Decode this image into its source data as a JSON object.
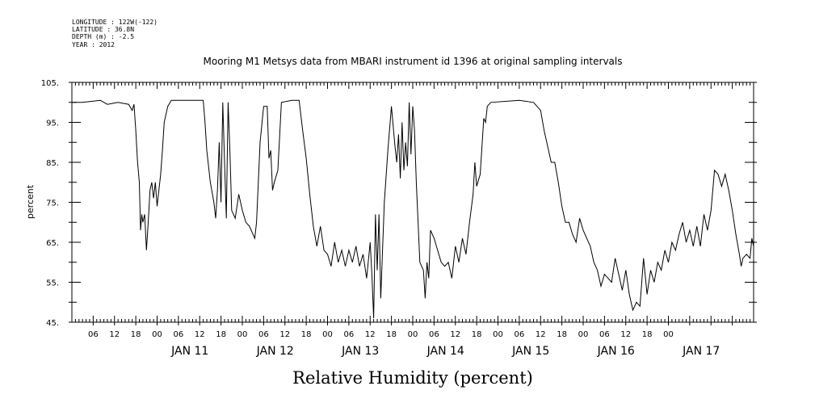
{
  "meta": {
    "lines": [
      "LONGITUDE : 122W(-122)",
      "LATITUDE : 36.8N",
      "DEPTH (m) : -2.5",
      "YEAR : 2012"
    ]
  },
  "chart_data": {
    "type": "line",
    "title": "Mooring M1 Metsys data from MBARI instrument id 1396 at original sampling intervals",
    "xlabel": "Relative Humidity (percent)",
    "ylabel": "percent",
    "ylim": [
      45,
      105
    ],
    "yticks": [
      45,
      55,
      65,
      75,
      85,
      95,
      105
    ],
    "ytick_labels": [
      "45.",
      "55.",
      "65.",
      "75.",
      "85.",
      "95.",
      "105."
    ],
    "xlim": [
      "2012-01-10T00:00",
      "2012-01-18T00:00"
    ],
    "xtick_labels": [
      "06",
      "12",
      "18",
      "00",
      "06",
      "12",
      "18",
      "00",
      "06",
      "12",
      "18",
      "00",
      "06",
      "12",
      "18",
      "00",
      "06",
      "12",
      "18",
      "00",
      "06",
      "12",
      "18",
      "00",
      "06",
      "12",
      "18",
      "00"
    ],
    "day_labels": [
      "JAN 11",
      "JAN 12",
      "JAN 13",
      "JAN 14",
      "JAN 15",
      "JAN 16",
      "JAN 17"
    ],
    "series": [
      {
        "color": "#000000",
        "points": [
          [
            "2012-01-10T00:00",
            100.0
          ],
          [
            "2012-01-10T03:00",
            100.0
          ],
          [
            "2012-01-10T08:00",
            100.5
          ],
          [
            "2012-01-10T10:00",
            99.5
          ],
          [
            "2012-01-10T13:00",
            100.0
          ],
          [
            "2012-01-10T16:00",
            99.5
          ],
          [
            "2012-01-10T17:00",
            98.0
          ],
          [
            "2012-01-10T17:30",
            99.5
          ],
          [
            "2012-01-10T18:00",
            93.0
          ],
          [
            "2012-01-10T18:30",
            85.0
          ],
          [
            "2012-01-10T19:00",
            80.0
          ],
          [
            "2012-01-10T19:20",
            68.0
          ],
          [
            "2012-01-10T19:40",
            72.0
          ],
          [
            "2012-01-10T20:00",
            70.0
          ],
          [
            "2012-01-10T20:30",
            72.0
          ],
          [
            "2012-01-10T21:00",
            63.0
          ],
          [
            "2012-01-10T21:30",
            70.0
          ],
          [
            "2012-01-10T22:00",
            78.0
          ],
          [
            "2012-01-10T22:30",
            80.0
          ],
          [
            "2012-01-10T23:00",
            76.0
          ],
          [
            "2012-01-10T23:30",
            80.0
          ],
          [
            "2012-01-11T00:00",
            74.0
          ],
          [
            "2012-01-11T00:30",
            78.0
          ],
          [
            "2012-01-11T01:00",
            82.0
          ],
          [
            "2012-01-11T01:30",
            88.0
          ],
          [
            "2012-01-11T02:00",
            95.0
          ],
          [
            "2012-01-11T03:00",
            99.0
          ],
          [
            "2012-01-11T04:00",
            100.5
          ],
          [
            "2012-01-11T09:00",
            100.5
          ],
          [
            "2012-01-11T13:00",
            100.5
          ],
          [
            "2012-01-11T13:30",
            95.0
          ],
          [
            "2012-01-11T14:00",
            88.0
          ],
          [
            "2012-01-11T15:00",
            80.0
          ],
          [
            "2012-01-11T16:00",
            75.0
          ],
          [
            "2012-01-11T16:30",
            71.0
          ],
          [
            "2012-01-11T17:00",
            78.0
          ],
          [
            "2012-01-11T17:30",
            90.0
          ],
          [
            "2012-01-11T18:00",
            75.0
          ],
          [
            "2012-01-11T18:30",
            100.0
          ],
          [
            "2012-01-11T19:00",
            85.0
          ],
          [
            "2012-01-11T19:30",
            71.0
          ],
          [
            "2012-01-11T20:00",
            100.0
          ],
          [
            "2012-01-11T20:30",
            88.0
          ],
          [
            "2012-01-11T21:00",
            73.0
          ],
          [
            "2012-01-11T22:00",
            71.0
          ],
          [
            "2012-01-11T23:00",
            77.0
          ],
          [
            "2012-01-12T00:00",
            73.0
          ],
          [
            "2012-01-12T01:00",
            70.0
          ],
          [
            "2012-01-12T02:00",
            69.0
          ],
          [
            "2012-01-12T03:00",
            67.0
          ],
          [
            "2012-01-12T03:30",
            66.0
          ],
          [
            "2012-01-12T04:00",
            70.0
          ],
          [
            "2012-01-12T05:00",
            90.0
          ],
          [
            "2012-01-12T06:00",
            99.0
          ],
          [
            "2012-01-12T07:00",
            99.0
          ],
          [
            "2012-01-12T07:30",
            86.0
          ],
          [
            "2012-01-12T08:00",
            88.0
          ],
          [
            "2012-01-12T08:30",
            78.0
          ],
          [
            "2012-01-12T09:00",
            80.0
          ],
          [
            "2012-01-12T10:00",
            83.0
          ],
          [
            "2012-01-12T11:00",
            100.0
          ],
          [
            "2012-01-12T14:00",
            100.5
          ],
          [
            "2012-01-12T16:00",
            100.5
          ],
          [
            "2012-01-12T17:00",
            93.0
          ],
          [
            "2012-01-12T18:00",
            86.0
          ],
          [
            "2012-01-12T19:00",
            77.0
          ],
          [
            "2012-01-12T20:00",
            69.0
          ],
          [
            "2012-01-12T21:00",
            64.0
          ],
          [
            "2012-01-12T22:00",
            69.0
          ],
          [
            "2012-01-12T23:00",
            63.0
          ],
          [
            "2012-01-13T00:00",
            62.0
          ],
          [
            "2012-01-13T01:00",
            59.0
          ],
          [
            "2012-01-13T02:00",
            65.0
          ],
          [
            "2012-01-13T03:00",
            60.0
          ],
          [
            "2012-01-13T04:00",
            63.0
          ],
          [
            "2012-01-13T05:00",
            59.0
          ],
          [
            "2012-01-13T06:00",
            63.0
          ],
          [
            "2012-01-13T07:00",
            60.0
          ],
          [
            "2012-01-13T08:00",
            64.0
          ],
          [
            "2012-01-13T09:00",
            59.0
          ],
          [
            "2012-01-13T10:00",
            62.0
          ],
          [
            "2012-01-13T11:00",
            56.0
          ],
          [
            "2012-01-13T12:00",
            65.0
          ],
          [
            "2012-01-13T12:30",
            57.0
          ],
          [
            "2012-01-13T13:00",
            46.0
          ],
          [
            "2012-01-13T13:30",
            72.0
          ],
          [
            "2012-01-13T14:00",
            58.0
          ],
          [
            "2012-01-13T14:30",
            72.0
          ],
          [
            "2012-01-13T15:00",
            51.0
          ],
          [
            "2012-01-13T16:00",
            75.0
          ],
          [
            "2012-01-13T17:00",
            88.0
          ],
          [
            "2012-01-13T18:00",
            99.0
          ],
          [
            "2012-01-13T19:00",
            89.0
          ],
          [
            "2012-01-13T19:30",
            85.0
          ],
          [
            "2012-01-13T20:00",
            92.0
          ],
          [
            "2012-01-13T20:30",
            81.0
          ],
          [
            "2012-01-13T21:00",
            95.0
          ],
          [
            "2012-01-13T21:30",
            83.0
          ],
          [
            "2012-01-13T22:00",
            90.0
          ],
          [
            "2012-01-13T22:30",
            84.0
          ],
          [
            "2012-01-13T23:00",
            100.0
          ],
          [
            "2012-01-13T23:30",
            87.0
          ],
          [
            "2012-01-14T00:00",
            99.0
          ],
          [
            "2012-01-14T00:30",
            93.0
          ],
          [
            "2012-01-14T01:00",
            80.0
          ],
          [
            "2012-01-14T02:00",
            60.0
          ],
          [
            "2012-01-14T03:00",
            58.0
          ],
          [
            "2012-01-14T03:30",
            51.0
          ],
          [
            "2012-01-14T04:00",
            60.0
          ],
          [
            "2012-01-14T04:30",
            56.0
          ],
          [
            "2012-01-14T05:00",
            68.0
          ],
          [
            "2012-01-14T06:00",
            66.0
          ],
          [
            "2012-01-14T07:00",
            63.0
          ],
          [
            "2012-01-14T08:00",
            60.0
          ],
          [
            "2012-01-14T09:00",
            59.0
          ],
          [
            "2012-01-14T10:00",
            60.0
          ],
          [
            "2012-01-14T11:00",
            56.0
          ],
          [
            "2012-01-14T12:00",
            64.0
          ],
          [
            "2012-01-14T13:00",
            60.0
          ],
          [
            "2012-01-14T14:00",
            66.0
          ],
          [
            "2012-01-14T15:00",
            62.0
          ],
          [
            "2012-01-14T16:00",
            70.0
          ],
          [
            "2012-01-14T17:00",
            77.0
          ],
          [
            "2012-01-14T17:30",
            85.0
          ],
          [
            "2012-01-14T18:00",
            79.0
          ],
          [
            "2012-01-14T19:00",
            82.0
          ],
          [
            "2012-01-14T20:00",
            96.0
          ],
          [
            "2012-01-14T20:30",
            95.0
          ],
          [
            "2012-01-14T21:00",
            99.0
          ],
          [
            "2012-01-14T22:00",
            100.0
          ],
          [
            "2012-01-15T06:00",
            100.5
          ],
          [
            "2012-01-15T10:00",
            100.0
          ],
          [
            "2012-01-15T12:00",
            98.0
          ],
          [
            "2012-01-15T13:00",
            93.0
          ],
          [
            "2012-01-15T14:00",
            89.0
          ],
          [
            "2012-01-15T15:00",
            85.0
          ],
          [
            "2012-01-15T16:00",
            85.0
          ],
          [
            "2012-01-15T17:00",
            80.0
          ],
          [
            "2012-01-15T18:00",
            74.0
          ],
          [
            "2012-01-15T19:00",
            70.0
          ],
          [
            "2012-01-15T20:00",
            70.0
          ],
          [
            "2012-01-15T21:00",
            67.0
          ],
          [
            "2012-01-15T22:00",
            65.0
          ],
          [
            "2012-01-15T23:00",
            71.0
          ],
          [
            "2012-01-16T00:00",
            68.0
          ],
          [
            "2012-01-16T01:00",
            66.0
          ],
          [
            "2012-01-16T02:00",
            64.0
          ],
          [
            "2012-01-16T03:00",
            60.0
          ],
          [
            "2012-01-16T04:00",
            58.0
          ],
          [
            "2012-01-16T05:00",
            54.0
          ],
          [
            "2012-01-16T06:00",
            57.0
          ],
          [
            "2012-01-16T07:00",
            56.0
          ],
          [
            "2012-01-16T08:00",
            55.0
          ],
          [
            "2012-01-16T09:00",
            61.0
          ],
          [
            "2012-01-16T10:00",
            57.0
          ],
          [
            "2012-01-16T11:00",
            53.0
          ],
          [
            "2012-01-16T12:00",
            58.0
          ],
          [
            "2012-01-16T13:00",
            52.0
          ],
          [
            "2012-01-16T14:00",
            48.0
          ],
          [
            "2012-01-16T15:00",
            50.0
          ],
          [
            "2012-01-16T16:00",
            49.0
          ],
          [
            "2012-01-16T17:00",
            61.0
          ],
          [
            "2012-01-16T18:00",
            52.0
          ],
          [
            "2012-01-16T19:00",
            58.0
          ],
          [
            "2012-01-16T20:00",
            55.0
          ],
          [
            "2012-01-16T21:00",
            60.0
          ],
          [
            "2012-01-16T22:00",
            58.0
          ],
          [
            "2012-01-16T23:00",
            63.0
          ],
          [
            "2012-01-17T00:00",
            60.0
          ],
          [
            "2012-01-17T01:00",
            65.0
          ],
          [
            "2012-01-17T02:00",
            63.0
          ],
          [
            "2012-01-17T03:00",
            67.0
          ],
          [
            "2012-01-17T04:00",
            70.0
          ],
          [
            "2012-01-17T05:00",
            65.0
          ],
          [
            "2012-01-17T06:00",
            68.0
          ],
          [
            "2012-01-17T07:00",
            64.0
          ],
          [
            "2012-01-17T08:00",
            69.0
          ],
          [
            "2012-01-17T09:00",
            64.0
          ],
          [
            "2012-01-17T10:00",
            72.0
          ],
          [
            "2012-01-17T11:00",
            68.0
          ],
          [
            "2012-01-17T12:00",
            73.0
          ],
          [
            "2012-01-17T13:00",
            83.0
          ],
          [
            "2012-01-17T14:00",
            82.0
          ],
          [
            "2012-01-17T15:00",
            79.0
          ],
          [
            "2012-01-17T16:00",
            82.0
          ],
          [
            "2012-01-17T17:00",
            78.0
          ],
          [
            "2012-01-17T18:00",
            73.0
          ],
          [
            "2012-01-17T19:00",
            67.0
          ],
          [
            "2012-01-17T20:00",
            62.0
          ],
          [
            "2012-01-17T20:30",
            59.0
          ],
          [
            "2012-01-17T21:00",
            61.0
          ],
          [
            "2012-01-17T22:00",
            62.0
          ],
          [
            "2012-01-17T23:00",
            61.0
          ],
          [
            "2012-01-17T23:30",
            66.0
          ],
          [
            "2012-01-18T00:00",
            64.0
          ]
        ]
      }
    ]
  }
}
